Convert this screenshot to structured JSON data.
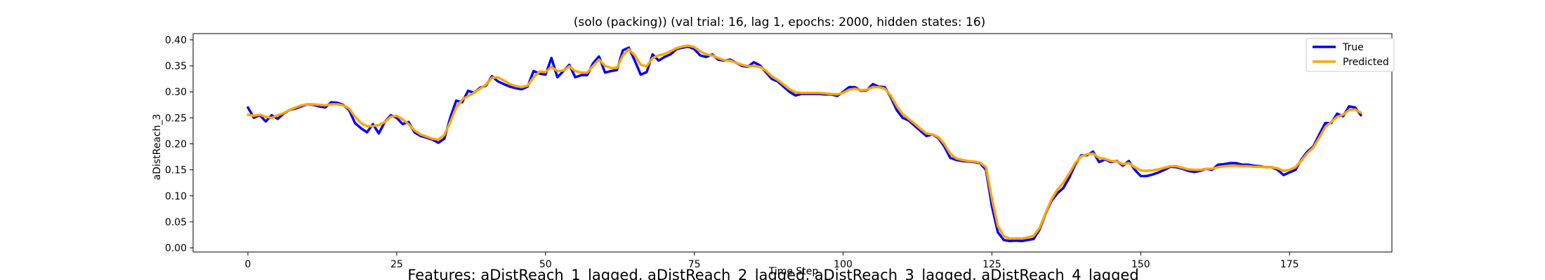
{
  "chart_data": {
    "type": "line",
    "title": "(solo (packing)) (val trial: 16, lag 1, epochs: 2000, hidden states: 16)",
    "xlabel": "Time Step",
    "ylabel": "aDistReach_3",
    "xlim": [
      -9.2,
      192.2
    ],
    "ylim": [
      -0.008,
      0.412
    ],
    "xticks": [
      0,
      25,
      50,
      75,
      100,
      125,
      150,
      175
    ],
    "yticks": [
      0.0,
      0.05,
      0.1,
      0.15,
      0.2,
      0.25,
      0.3,
      0.35,
      0.4
    ],
    "grid": false,
    "legend_position": "top-right",
    "series": [
      {
        "name": "True",
        "color": "#0000ff",
        "values": [
          0.27,
          0.25,
          0.255,
          0.243,
          0.255,
          0.248,
          0.258,
          0.265,
          0.268,
          0.272,
          0.276,
          0.275,
          0.272,
          0.27,
          0.28,
          0.279,
          0.275,
          0.265,
          0.24,
          0.23,
          0.222,
          0.238,
          0.22,
          0.242,
          0.255,
          0.25,
          0.238,
          0.242,
          0.222,
          0.215,
          0.212,
          0.208,
          0.202,
          0.21,
          0.25,
          0.283,
          0.28,
          0.302,
          0.298,
          0.308,
          0.312,
          0.33,
          0.32,
          0.315,
          0.31,
          0.307,
          0.305,
          0.31,
          0.34,
          0.335,
          0.333,
          0.365,
          0.328,
          0.34,
          0.352,
          0.328,
          0.332,
          0.332,
          0.355,
          0.368,
          0.337,
          0.34,
          0.342,
          0.38,
          0.385,
          0.36,
          0.333,
          0.338,
          0.372,
          0.36,
          0.367,
          0.372,
          0.382,
          0.385,
          0.387,
          0.382,
          0.37,
          0.367,
          0.372,
          0.362,
          0.36,
          0.362,
          0.356,
          0.35,
          0.348,
          0.357,
          0.351,
          0.338,
          0.325,
          0.32,
          0.31,
          0.3,
          0.293,
          0.296,
          0.296,
          0.296,
          0.296,
          0.295,
          0.295,
          0.292,
          0.3,
          0.309,
          0.309,
          0.302,
          0.303,
          0.315,
          0.31,
          0.309,
          0.29,
          0.265,
          0.25,
          0.245,
          0.235,
          0.225,
          0.215,
          0.218,
          0.211,
          0.195,
          0.173,
          0.169,
          0.167,
          0.166,
          0.165,
          0.163,
          0.15,
          0.08,
          0.03,
          0.015,
          0.013,
          0.014,
          0.013,
          0.015,
          0.017,
          0.035,
          0.065,
          0.09,
          0.105,
          0.115,
          0.135,
          0.16,
          0.178,
          0.178,
          0.185,
          0.165,
          0.17,
          0.165,
          0.167,
          0.158,
          0.167,
          0.15,
          0.138,
          0.138,
          0.141,
          0.145,
          0.15,
          0.156,
          0.155,
          0.152,
          0.148,
          0.146,
          0.148,
          0.152,
          0.15,
          0.16,
          0.161,
          0.163,
          0.163,
          0.16,
          0.16,
          0.158,
          0.157,
          0.155,
          0.155,
          0.15,
          0.14,
          0.145,
          0.15,
          0.17,
          0.185,
          0.195,
          0.218,
          0.24,
          0.24,
          0.258,
          0.253,
          0.272,
          0.27,
          0.255
        ]
      },
      {
        "name": "Predicted",
        "color": "#ffa500",
        "values": [
          0.256,
          0.254,
          0.256,
          0.252,
          0.25,
          0.255,
          0.259,
          0.265,
          0.27,
          0.274,
          0.276,
          0.276,
          0.275,
          0.274,
          0.276,
          0.276,
          0.274,
          0.268,
          0.252,
          0.24,
          0.234,
          0.234,
          0.236,
          0.242,
          0.252,
          0.254,
          0.247,
          0.238,
          0.226,
          0.218,
          0.214,
          0.21,
          0.208,
          0.217,
          0.242,
          0.27,
          0.285,
          0.292,
          0.298,
          0.306,
          0.314,
          0.327,
          0.328,
          0.322,
          0.315,
          0.311,
          0.309,
          0.312,
          0.328,
          0.339,
          0.338,
          0.348,
          0.34,
          0.341,
          0.349,
          0.34,
          0.337,
          0.337,
          0.35,
          0.362,
          0.35,
          0.346,
          0.346,
          0.37,
          0.382,
          0.37,
          0.352,
          0.349,
          0.365,
          0.37,
          0.373,
          0.378,
          0.384,
          0.387,
          0.389,
          0.386,
          0.378,
          0.372,
          0.37,
          0.365,
          0.361,
          0.36,
          0.356,
          0.352,
          0.349,
          0.35,
          0.348,
          0.341,
          0.33,
          0.323,
          0.314,
          0.305,
          0.299,
          0.298,
          0.298,
          0.298,
          0.298,
          0.297,
          0.296,
          0.295,
          0.298,
          0.304,
          0.306,
          0.303,
          0.304,
          0.309,
          0.309,
          0.306,
          0.293,
          0.273,
          0.257,
          0.248,
          0.239,
          0.229,
          0.22,
          0.218,
          0.213,
          0.2,
          0.181,
          0.172,
          0.169,
          0.167,
          0.166,
          0.164,
          0.155,
          0.095,
          0.042,
          0.022,
          0.018,
          0.018,
          0.018,
          0.02,
          0.023,
          0.038,
          0.066,
          0.093,
          0.112,
          0.125,
          0.143,
          0.163,
          0.176,
          0.18,
          0.181,
          0.173,
          0.171,
          0.167,
          0.166,
          0.161,
          0.163,
          0.155,
          0.149,
          0.148,
          0.149,
          0.151,
          0.154,
          0.157,
          0.157,
          0.154,
          0.151,
          0.15,
          0.15,
          0.152,
          0.152,
          0.155,
          0.157,
          0.158,
          0.158,
          0.157,
          0.157,
          0.156,
          0.156,
          0.155,
          0.155,
          0.153,
          0.148,
          0.15,
          0.155,
          0.168,
          0.182,
          0.193,
          0.212,
          0.232,
          0.242,
          0.252,
          0.256,
          0.265,
          0.266,
          0.26
        ]
      }
    ],
    "caption": "Features: aDistReach_1_lagged, aDistReach_2_lagged, aDistReach_3_lagged, aDistReach_4_lagged"
  }
}
